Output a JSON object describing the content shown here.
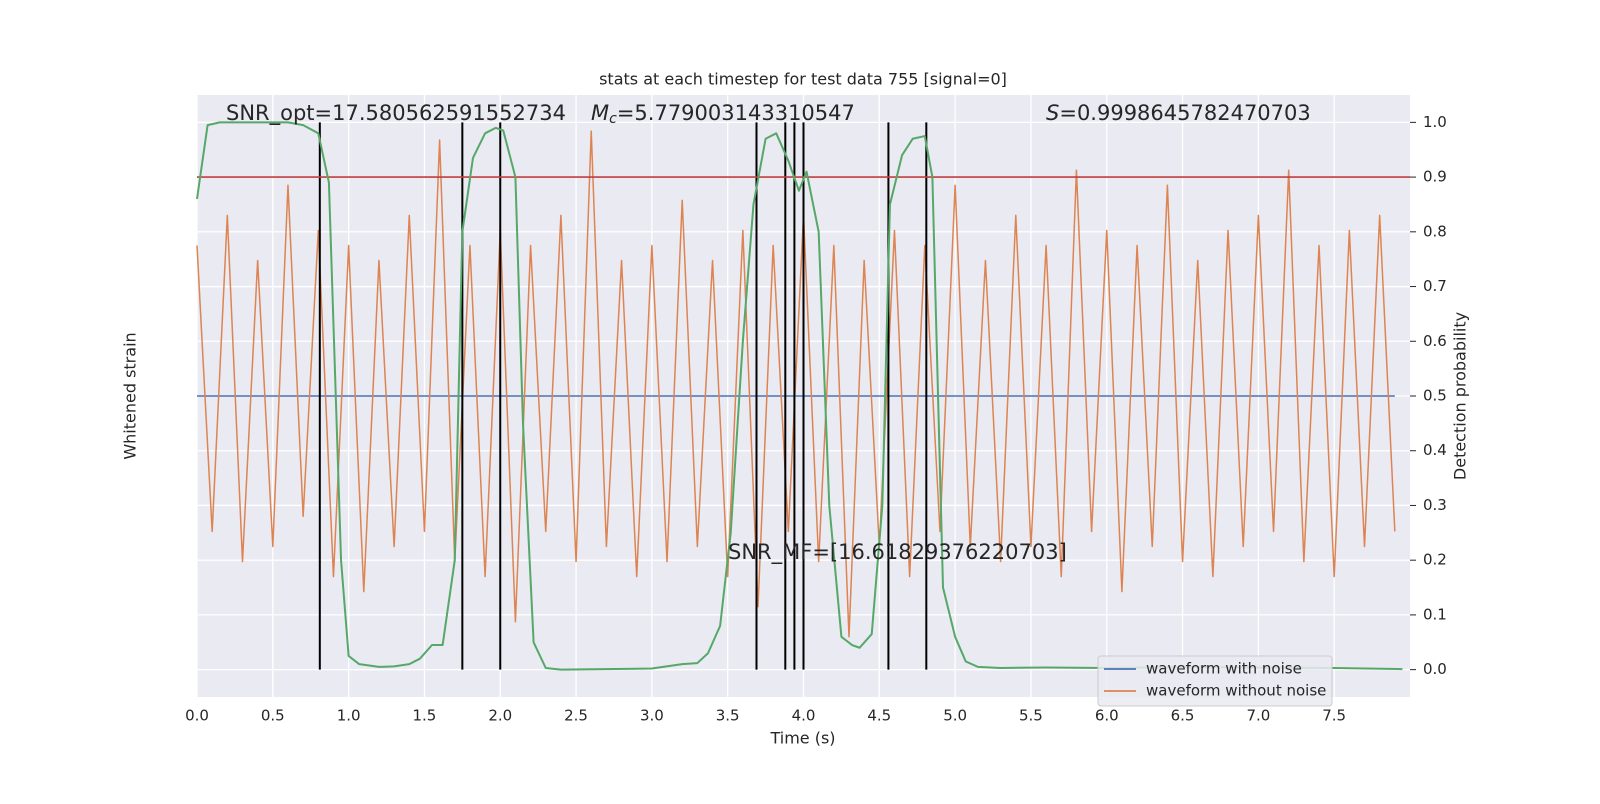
{
  "chart_data": {
    "type": "line",
    "title": "stats at each timestep for test data 755 [signal=0]",
    "xlabel": "Time (s)",
    "ylabel": "Whitened strain",
    "y2label": "Detection probability",
    "xlim": [
      0,
      8
    ],
    "xticks": [
      {
        "value": 0,
        "label": "0.0"
      },
      0.5,
      {
        "value": 1,
        "label": "1.0"
      },
      1.5,
      {
        "value": 2,
        "label": "2.0"
      },
      2.5,
      {
        "value": 3,
        "label": "3.0"
      },
      3.5,
      {
        "value": 4,
        "label": "4.0"
      },
      4.5,
      {
        "value": 5,
        "label": "5.0"
      },
      5.5,
      {
        "value": 6,
        "label": "6.0"
      },
      6.5,
      {
        "value": 7,
        "label": "7.0"
      },
      7.5
    ],
    "ylim": [
      -1,
      1
    ],
    "y2lim": [
      -0.05,
      1.05
    ],
    "y2ticks": [
      {
        "value": 0,
        "label": "0.0"
      },
      0.1,
      0.2,
      0.3,
      0.4,
      0.5,
      0.6,
      0.7,
      0.8,
      0.9,
      {
        "value": 1,
        "label": "1.0"
      }
    ],
    "grid": true,
    "legend": "lower right",
    "x": [
      0,
      0.1,
      0.2,
      0.3,
      0.4,
      0.5,
      0.6,
      0.7,
      0.8,
      0.9,
      1,
      1.1,
      1.2,
      1.3,
      1.4,
      1.5,
      1.6,
      1.7,
      1.8,
      1.9,
      2,
      2.1,
      2.2,
      2.3,
      2.4,
      2.5,
      2.6,
      2.7,
      2.8,
      2.9,
      3,
      3.1,
      3.2,
      3.3,
      3.4,
      3.5,
      3.6,
      3.7,
      3.8,
      3.9,
      4,
      4.1,
      4.2,
      4.3,
      4.4,
      4.5,
      4.6,
      4.7,
      4.8,
      4.9,
      5,
      5.1,
      5.2,
      5.3,
      5.4,
      5.5,
      5.6,
      5.7,
      5.8,
      5.9,
      6,
      6.1,
      6.2,
      6.3,
      6.4,
      6.5,
      6.6,
      6.7,
      6.8,
      6.9,
      7,
      7.1,
      7.2,
      7.3,
      7.4,
      7.5,
      7.6,
      7.7,
      7.8,
      7.9
    ],
    "series": [
      {
        "name": "waveform with noise",
        "color": "#4c72b0",
        "values": [
          0,
          0,
          0,
          0,
          0,
          0,
          0,
          0,
          0,
          0,
          0,
          0,
          0,
          0,
          0,
          0,
          0,
          0,
          0,
          0,
          0,
          0,
          0,
          0,
          0,
          0,
          0,
          0,
          0,
          0,
          0,
          0,
          0,
          0,
          0,
          0,
          0,
          0,
          0,
          0,
          0,
          0,
          0,
          0,
          0,
          0,
          0,
          0,
          0,
          0,
          0,
          0,
          0,
          0,
          0,
          0,
          0,
          0,
          0,
          0,
          0,
          0,
          0,
          0,
          0,
          0,
          0,
          0,
          0,
          0,
          0,
          0,
          0,
          0,
          0,
          0,
          0,
          0,
          0,
          0
        ]
      },
      {
        "name": "waveform without noise",
        "color": "#dd8452",
        "values": [
          0.5,
          -0.45,
          0.6,
          -0.55,
          0.45,
          -0.5,
          0.7,
          -0.4,
          0.55,
          -0.6,
          0.5,
          -0.65,
          0.45,
          -0.5,
          0.6,
          -0.45,
          0.85,
          -0.55,
          0.5,
          -0.6,
          0.55,
          -0.75,
          0.5,
          -0.45,
          0.6,
          -0.55,
          0.88,
          -0.5,
          0.45,
          -0.6,
          0.5,
          -0.55,
          0.65,
          -0.5,
          0.45,
          -0.6,
          0.55,
          -0.7,
          0.5,
          -0.45,
          0.6,
          -0.55,
          0.5,
          -0.8,
          0.45,
          -0.5,
          0.55,
          -0.6,
          0.5,
          -0.45,
          0.7,
          -0.5,
          0.45,
          -0.55,
          0.6,
          -0.5,
          0.5,
          -0.6,
          0.75,
          -0.45,
          0.55,
          -0.65,
          0.5,
          -0.5,
          0.7,
          -0.55,
          0.45,
          -0.6,
          0.55,
          -0.5,
          0.6,
          -0.45,
          0.75,
          -0.55,
          0.5,
          -0.6,
          0.55,
          -0.5,
          0.6,
          -0.45
        ]
      }
    ],
    "probability": {
      "color": "#55a868",
      "axis": "y2",
      "x": [
        0,
        0.07,
        0.15,
        0.3,
        0.45,
        0.6,
        0.7,
        0.8,
        0.87,
        0.95,
        1,
        1.07,
        1.2,
        1.3,
        1.4,
        1.47,
        1.55,
        1.62,
        1.7,
        1.75,
        1.82,
        1.9,
        1.97,
        2.02,
        2.1,
        2.15,
        2.22,
        2.3,
        2.4,
        3,
        3.2,
        3.3,
        3.37,
        3.45,
        3.52,
        3.6,
        3.67,
        3.75,
        3.82,
        3.9,
        3.97,
        4.02,
        4.1,
        4.17,
        4.25,
        4.32,
        4.37,
        4.45,
        4.52,
        4.57,
        4.65,
        4.72,
        4.8,
        4.85,
        4.92,
        5,
        5.07,
        5.15,
        5.3,
        5.6,
        6,
        6.5,
        7,
        7.5,
        7.95
      ],
      "values": [
        0.86,
        0.995,
        1,
        1,
        1,
        1,
        0.995,
        0.98,
        0.89,
        0.2,
        0.025,
        0.01,
        0.005,
        0.006,
        0.01,
        0.02,
        0.045,
        0.045,
        0.2,
        0.8,
        0.935,
        0.98,
        0.99,
        0.985,
        0.9,
        0.45,
        0.05,
        0.003,
        0,
        0.002,
        0.01,
        0.012,
        0.03,
        0.08,
        0.25,
        0.6,
        0.85,
        0.97,
        0.98,
        0.93,
        0.875,
        0.91,
        0.8,
        0.3,
        0.06,
        0.045,
        0.04,
        0.065,
        0.3,
        0.85,
        0.94,
        0.97,
        0.975,
        0.9,
        0.15,
        0.06,
        0.015,
        0.005,
        0.003,
        0.004,
        0.003,
        0.005,
        0.004,
        0.003,
        0.001
      ]
    },
    "threshold": {
      "value": 0.9,
      "color": "#c03d3e"
    },
    "vlines": {
      "x": [
        0.81,
        1.75,
        2,
        3.69,
        3.88,
        3.94,
        4,
        4.56,
        4.81
      ],
      "color": "#000000"
    },
    "annotations": [
      {
        "text": "SNR_opt=17.580562591552734"
      },
      {
        "symbol": "M",
        "subscript": "c",
        "text": "=5.779003143310547"
      },
      {
        "symbol": "S",
        "text": "=0.9998645782470703"
      },
      {
        "text": "SNR_MF=[16.61829376220703]"
      }
    ]
  }
}
